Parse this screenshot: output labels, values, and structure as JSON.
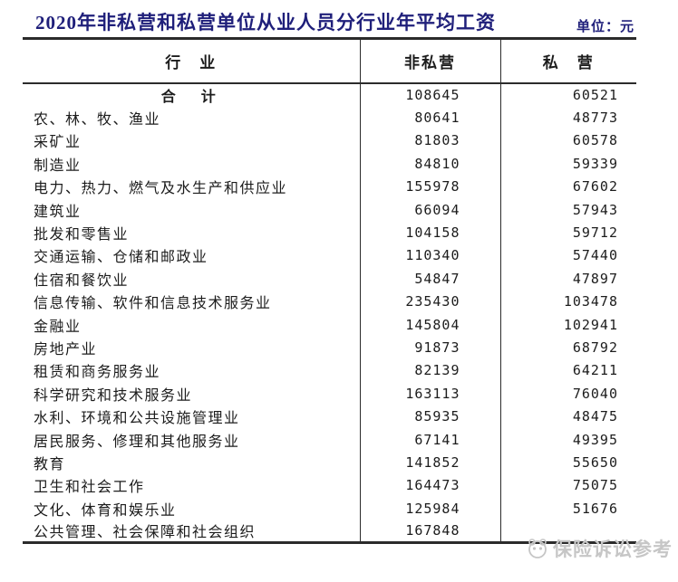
{
  "page": {
    "title": "2020年非私营和私营单位从业人员分行业年平均工资",
    "unit_label": "单位：元"
  },
  "watermark": {
    "text": "保险诉讼参考",
    "logo_icon": "panda-face-icon"
  },
  "colors": {
    "title_text": "#1f1f7a",
    "body_text": "#1c1c1c",
    "border": "#2b2b2b",
    "watermark": "#c6c6c6",
    "background": "#ffffff"
  },
  "chart_data": {
    "type": "table",
    "title": "2020年非私营和私营单位从业人员分行业年平均工资",
    "unit": "单位：元",
    "columns": [
      "行　业",
      "非私营",
      "私　营"
    ],
    "rows": [
      {
        "industry": "合　计",
        "non_private": "108645",
        "private": "60521",
        "is_total": true
      },
      {
        "industry": "农、林、牧、渔业",
        "non_private": "80641",
        "private": "48773",
        "is_total": false
      },
      {
        "industry": "采矿业",
        "non_private": "81803",
        "private": "60578",
        "is_total": false
      },
      {
        "industry": "制造业",
        "non_private": "84810",
        "private": "59339",
        "is_total": false
      },
      {
        "industry": "电力、热力、燃气及水生产和供应业",
        "non_private": "155978",
        "private": "67602",
        "is_total": false
      },
      {
        "industry": "建筑业",
        "non_private": "66094",
        "private": "57943",
        "is_total": false
      },
      {
        "industry": "批发和零售业",
        "non_private": "104158",
        "private": "59712",
        "is_total": false
      },
      {
        "industry": "交通运输、仓储和邮政业",
        "non_private": "110340",
        "private": "57440",
        "is_total": false
      },
      {
        "industry": "住宿和餐饮业",
        "non_private": "54847",
        "private": "47897",
        "is_total": false
      },
      {
        "industry": "信息传输、软件和信息技术服务业",
        "non_private": "235430",
        "private": "103478",
        "is_total": false
      },
      {
        "industry": "金融业",
        "non_private": "145804",
        "private": "102941",
        "is_total": false
      },
      {
        "industry": "房地产业",
        "non_private": "91873",
        "private": "68792",
        "is_total": false
      },
      {
        "industry": "租赁和商务服务业",
        "non_private": "82139",
        "private": "64211",
        "is_total": false
      },
      {
        "industry": "科学研究和技术服务业",
        "non_private": "163113",
        "private": "76040",
        "is_total": false
      },
      {
        "industry": "水利、环境和公共设施管理业",
        "non_private": "85935",
        "private": "48475",
        "is_total": false
      },
      {
        "industry": "居民服务、修理和其他服务业",
        "non_private": "67141",
        "private": "49395",
        "is_total": false
      },
      {
        "industry": "教育",
        "non_private": "141852",
        "private": "55650",
        "is_total": false
      },
      {
        "industry": "卫生和社会工作",
        "non_private": "164473",
        "private": "75075",
        "is_total": false
      },
      {
        "industry": "文化、体育和娱乐业",
        "non_private": "125984",
        "private": "51676",
        "is_total": false
      },
      {
        "industry": "公共管理、社会保障和社会组织",
        "non_private": "167848",
        "private": "",
        "is_total": false
      }
    ]
  }
}
